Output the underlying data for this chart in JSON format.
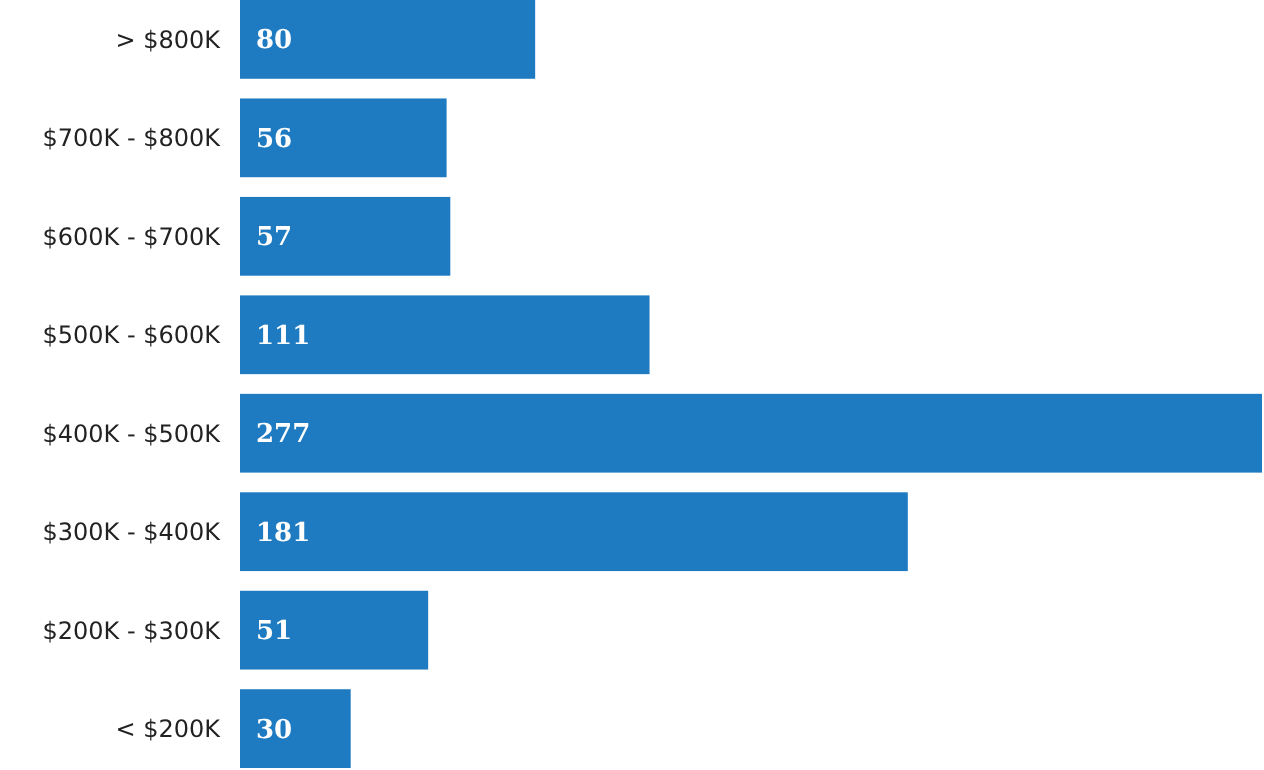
{
  "chart_data": {
    "type": "bar",
    "orientation": "horizontal",
    "categories": [
      "> $800K",
      "$700K - $800K",
      "$600K - $700K",
      "$500K - $600K",
      "$400K - $500K",
      "$300K - $400K",
      "$200K - $300K",
      "< $200K"
    ],
    "values": [
      80,
      56,
      57,
      111,
      277,
      181,
      51,
      30
    ],
    "color": "#1f7bc1",
    "data_labels": true
  }
}
